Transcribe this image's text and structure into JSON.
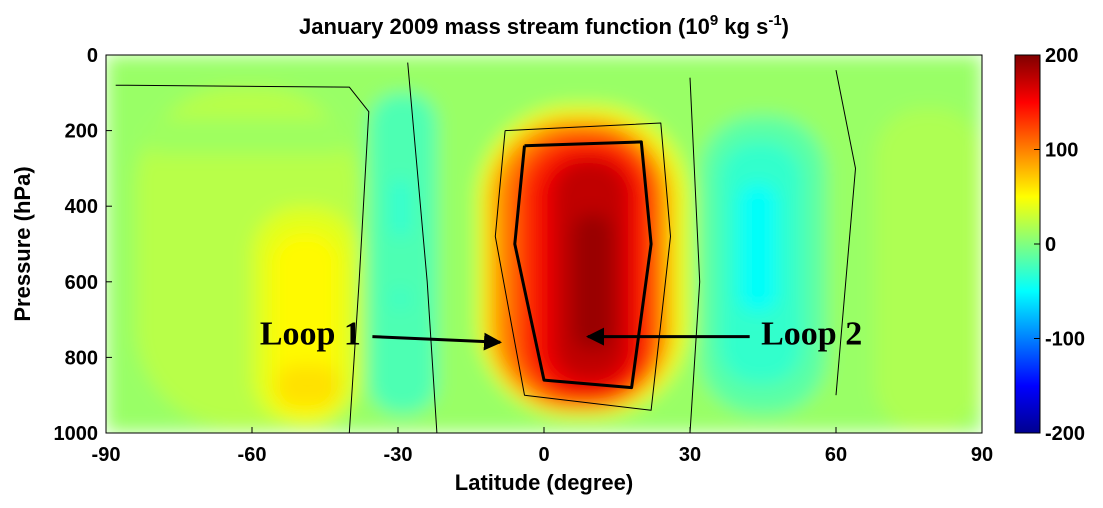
{
  "chart_data": {
    "type": "heatmap",
    "title": {
      "text": "January 2009 mass stream function (10",
      "sup1": "9",
      "mid": " kg s",
      "sup2": "-1",
      "end": ")"
    },
    "xlabel": "Latitude (degree)",
    "ylabel": "Pressure (hPa)",
    "xlim": [
      -90,
      90
    ],
    "ylim": [
      1000,
      0
    ],
    "x_ticks": [
      -90,
      -60,
      -30,
      0,
      30,
      60,
      90
    ],
    "y_ticks": [
      0,
      200,
      400,
      600,
      800,
      1000
    ],
    "colorbar": {
      "range": [
        -200,
        200
      ],
      "ticks": [
        200,
        100,
        0,
        -100,
        -200
      ],
      "colormap": [
        "#00008f",
        "#0000ff",
        "#0080ff",
        "#00ffff",
        "#80ff80",
        "#ffff00",
        "#ff8000",
        "#ff0000",
        "#800000"
      ]
    },
    "cells": [
      {
        "lat": -90,
        "p": 0,
        "lat2": 90,
        "p2": 1000,
        "v": 10
      },
      {
        "lat": -84,
        "p": 85,
        "lat2": -38,
        "p2": 985,
        "v": 22
      },
      {
        "lat": -82,
        "p": 170,
        "lat2": -40,
        "p2": 260,
        "v": 12
      },
      {
        "lat": -60,
        "p": 400,
        "lat2": -38,
        "p2": 980,
        "v": 38
      },
      {
        "lat": -56,
        "p": 470,
        "lat2": -42,
        "p2": 960,
        "v": 52
      },
      {
        "lat": -55,
        "p": 820,
        "lat2": -42,
        "p2": 930,
        "v": 62
      },
      {
        "lat": -36,
        "p": 100,
        "lat2": -22,
        "p2": 950,
        "v": -20
      },
      {
        "lat": -31,
        "p": 330,
        "lat2": -28,
        "p2": 480,
        "v": -35
      },
      {
        "lat": -31,
        "p": 620,
        "lat2": -28,
        "p2": 670,
        "v": -30
      },
      {
        "lat": -14,
        "p": 130,
        "lat2": 30,
        "p2": 960,
        "v": 40
      },
      {
        "lat": -12,
        "p": 160,
        "lat2": 27,
        "p2": 945,
        "v": 70
      },
      {
        "lat": -10,
        "p": 180,
        "lat2": 25,
        "p2": 935,
        "v": 100
      },
      {
        "lat": -6,
        "p": 210,
        "lat2": 23,
        "p2": 920,
        "v": 130
      },
      {
        "lat": -2,
        "p": 250,
        "lat2": 20,
        "p2": 900,
        "v": 155
      },
      {
        "lat": 2,
        "p": 280,
        "lat2": 17,
        "p2": 860,
        "v": 175
      },
      {
        "lat": 6,
        "p": 420,
        "lat2": 14,
        "p2": 780,
        "v": 190
      },
      {
        "lat": 32,
        "p": 160,
        "lat2": 58,
        "p2": 950,
        "v": -15
      },
      {
        "lat": 36,
        "p": 230,
        "lat2": 53,
        "p2": 870,
        "v": -30
      },
      {
        "lat": 40,
        "p": 340,
        "lat2": 48,
        "p2": 680,
        "v": -48
      },
      {
        "lat": 68,
        "p": 140,
        "lat2": 90,
        "p2": 1000,
        "v": 18
      }
    ],
    "contours": [
      {
        "v": 0,
        "points": [
          [
            -88,
            80
          ],
          [
            -40,
            85
          ],
          [
            -36,
            150
          ],
          [
            -38,
            600
          ],
          [
            -40,
            1000
          ]
        ]
      },
      {
        "v": 0,
        "points": [
          [
            -28,
            20
          ],
          [
            -24,
            600
          ],
          [
            -22,
            1000
          ]
        ]
      },
      {
        "v": 0,
        "points": [
          [
            30,
            60
          ],
          [
            32,
            600
          ],
          [
            30,
            1000
          ]
        ]
      },
      {
        "v": 0,
        "points": [
          [
            60,
            40
          ],
          [
            64,
            300
          ],
          [
            60,
            900
          ]
        ]
      },
      {
        "v": 100,
        "points": [
          [
            -8,
            200
          ],
          [
            24,
            180
          ],
          [
            26,
            480
          ],
          [
            22,
            940
          ],
          [
            -4,
            900
          ],
          [
            -10,
            480
          ],
          [
            -8,
            200
          ]
        ]
      },
      {
        "v": 150,
        "points": [
          [
            -4,
            240
          ],
          [
            20,
            230
          ],
          [
            22,
            500
          ],
          [
            18,
            880
          ],
          [
            0,
            860
          ],
          [
            -6,
            500
          ],
          [
            -4,
            240
          ]
        ]
      }
    ],
    "annotations": [
      {
        "text": "Loop 1",
        "lat": -48,
        "p": 745,
        "arrow_to": [
          -9,
          760
        ]
      },
      {
        "text": "Loop 2",
        "lat": 55,
        "p": 745,
        "arrow_to": [
          9,
          745
        ]
      }
    ]
  }
}
